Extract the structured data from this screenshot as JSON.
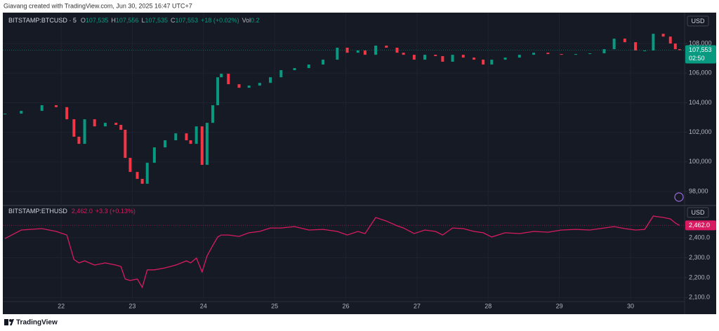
{
  "header": {
    "text": "Giavang created with TradingView.com, Jun 30, 2025 16:47 UTC+7"
  },
  "chart_data": [
    {
      "type": "candlestick",
      "symbol": "BITSTAMP:BTCUSD · 5",
      "legend": [
        {
          "label": "O",
          "value": "107,535"
        },
        {
          "label": "H",
          "value": "107,556"
        },
        {
          "label": "L",
          "value": "107,535"
        },
        {
          "label": "C",
          "value": "107,553"
        }
      ],
      "change": "+18 (+0.02%)",
      "volume": {
        "label": "Vol",
        "value": "0.2"
      },
      "currency": "USD",
      "last_price": {
        "value": 107553,
        "label": "107,553"
      },
      "countdown": "02:50",
      "up_color": "#089981",
      "down_color": "#f23645",
      "x": [
        21.21,
        21.44,
        21.73,
        21.93,
        22.08,
        22.18,
        22.25,
        22.33,
        22.47,
        22.62,
        22.77,
        22.84,
        22.9,
        22.97,
        23.07,
        23.14,
        23.21,
        23.31,
        23.46,
        23.61,
        23.76,
        23.82,
        23.9,
        23.98,
        24.05,
        24.13,
        24.2,
        24.25,
        24.35,
        24.5,
        24.64,
        24.79,
        24.94,
        25.09,
        25.28,
        25.48,
        25.68,
        25.88,
        26.02,
        26.17,
        26.27,
        26.42,
        26.57,
        26.72,
        26.81,
        26.96,
        27.11,
        27.26,
        27.36,
        27.5,
        27.65,
        27.8,
        27.93,
        28.05,
        28.24,
        28.44,
        28.64,
        28.84,
        29.03,
        29.23,
        29.43,
        29.63,
        29.77,
        29.92,
        30.07,
        30.2,
        30.32,
        30.46,
        30.56,
        30.63,
        30.69
      ],
      "values": [
        103260,
        103450,
        103830,
        103700,
        102880,
        101700,
        101220,
        102880,
        102400,
        102640,
        102500,
        102170,
        100270,
        99320,
        98850,
        98520,
        99940,
        100980,
        101460,
        101930,
        101460,
        101220,
        102400,
        99800,
        102640,
        103830,
        105720,
        105960,
        105250,
        105010,
        105160,
        105340,
        105720,
        106200,
        106340,
        106580,
        106910,
        107720,
        107380,
        107530,
        107240,
        107860,
        107720,
        107380,
        107240,
        106910,
        107240,
        107150,
        106770,
        107240,
        107050,
        106910,
        106580,
        106910,
        107050,
        107240,
        107380,
        107290,
        107240,
        107290,
        107340,
        107620,
        108330,
        108090,
        107530,
        107530,
        108660,
        108470,
        108000,
        107620,
        107553
      ],
      "xlim": [
        21.21,
        30.76
      ],
      "ylim": [
        97100,
        109900
      ],
      "yticks": [
        {
          "value": 98000,
          "label": "98,000"
        },
        {
          "value": 100000,
          "label": "100,000"
        },
        {
          "value": 102000,
          "label": "102,000"
        },
        {
          "value": 104000,
          "label": "104,000"
        },
        {
          "value": 106000,
          "label": "106,000"
        },
        {
          "value": 108000,
          "label": "108,000"
        }
      ],
      "grid": true
    },
    {
      "type": "line",
      "symbol": "BITSTAMP:ETHUSD",
      "price": "2,462.0",
      "change": "+3.3 (+0.13%)",
      "currency": "USD",
      "last_price": {
        "value": 2462,
        "label": "2,462.0"
      },
      "color": "#d81b60",
      "x": [
        21.21,
        21.44,
        21.73,
        21.93,
        22.08,
        22.18,
        22.25,
        22.33,
        22.47,
        22.62,
        22.77,
        22.84,
        22.9,
        22.97,
        23.07,
        23.14,
        23.21,
        23.31,
        23.46,
        23.61,
        23.76,
        23.82,
        23.9,
        23.98,
        24.05,
        24.13,
        24.2,
        24.25,
        24.35,
        24.5,
        24.64,
        24.79,
        24.94,
        25.09,
        25.28,
        25.48,
        25.68,
        25.88,
        26.02,
        26.17,
        26.27,
        26.42,
        26.57,
        26.72,
        26.81,
        26.96,
        27.11,
        27.26,
        27.36,
        27.5,
        27.65,
        27.8,
        27.93,
        28.05,
        28.24,
        28.44,
        28.64,
        28.84,
        29.03,
        29.23,
        29.43,
        29.63,
        29.77,
        29.92,
        30.07,
        30.2,
        30.32,
        30.46,
        30.56,
        30.63,
        30.69
      ],
      "values": [
        2396,
        2439,
        2446,
        2432,
        2414,
        2291,
        2274,
        2284,
        2263,
        2274,
        2263,
        2256,
        2193,
        2186,
        2193,
        2151,
        2239,
        2239,
        2249,
        2263,
        2284,
        2274,
        2298,
        2228,
        2309,
        2361,
        2404,
        2414,
        2414,
        2407,
        2425,
        2432,
        2449,
        2449,
        2456,
        2439,
        2442,
        2432,
        2414,
        2432,
        2421,
        2502,
        2484,
        2460,
        2449,
        2421,
        2439,
        2432,
        2414,
        2449,
        2446,
        2432,
        2425,
        2404,
        2425,
        2421,
        2432,
        2428,
        2439,
        2442,
        2439,
        2449,
        2456,
        2446,
        2439,
        2442,
        2509,
        2502,
        2495,
        2474,
        2462
      ],
      "xlim": [
        21.21,
        30.76
      ],
      "ylim": [
        2080,
        2555
      ],
      "yticks": [
        {
          "value": 2100,
          "label": "2,100.0"
        },
        {
          "value": 2200,
          "label": "2,200.0"
        },
        {
          "value": 2300,
          "label": "2,300.0"
        },
        {
          "value": 2400,
          "label": "2,400.0"
        }
      ],
      "xticks": [
        22,
        23,
        24,
        25,
        26,
        27,
        28,
        29,
        30
      ],
      "grid": true
    }
  ],
  "footer": {
    "brand": "TradingView"
  }
}
